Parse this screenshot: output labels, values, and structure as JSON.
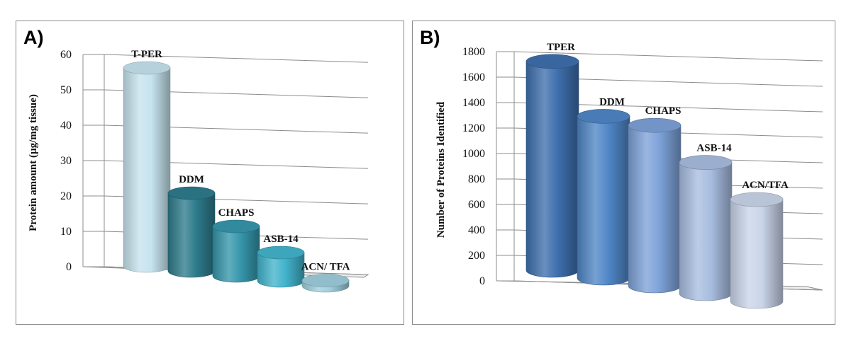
{
  "chart_data": [
    {
      "panel_label": "A)",
      "type": "bar",
      "style": "3d-cylinder",
      "ylabel": "Protein amount (µg/mg tissue)",
      "ylim": [
        0,
        60
      ],
      "yticks": [
        0,
        10,
        20,
        30,
        40,
        50,
        60
      ],
      "categories": [
        "T-PER",
        "DDM",
        "CHAPS",
        "ASB-14",
        "ACN/ TFA"
      ],
      "values": [
        56,
        22,
        14,
        8,
        1.5
      ],
      "colors": [
        "#c6e3ee",
        "#2e7b8c",
        "#3596ab",
        "#42b3cc",
        "#9fcfdd"
      ],
      "grid": true
    },
    {
      "panel_label": "B)",
      "type": "bar",
      "style": "3d-cylinder",
      "ylabel": "Number of Proteins Identified",
      "ylim": [
        0,
        1800
      ],
      "yticks": [
        0,
        200,
        400,
        600,
        800,
        1000,
        1200,
        1400,
        1600,
        1800
      ],
      "categories": [
        "TPER",
        "DDM",
        "CHAPS",
        "ASB-14",
        "ACN/TFA"
      ],
      "values": [
        1640,
        1270,
        1260,
        1030,
        800
      ],
      "colors": [
        "#3e6fad",
        "#4f86c6",
        "#7da1d8",
        "#a8bde0",
        "#c9d5e9"
      ],
      "grid": true
    }
  ]
}
